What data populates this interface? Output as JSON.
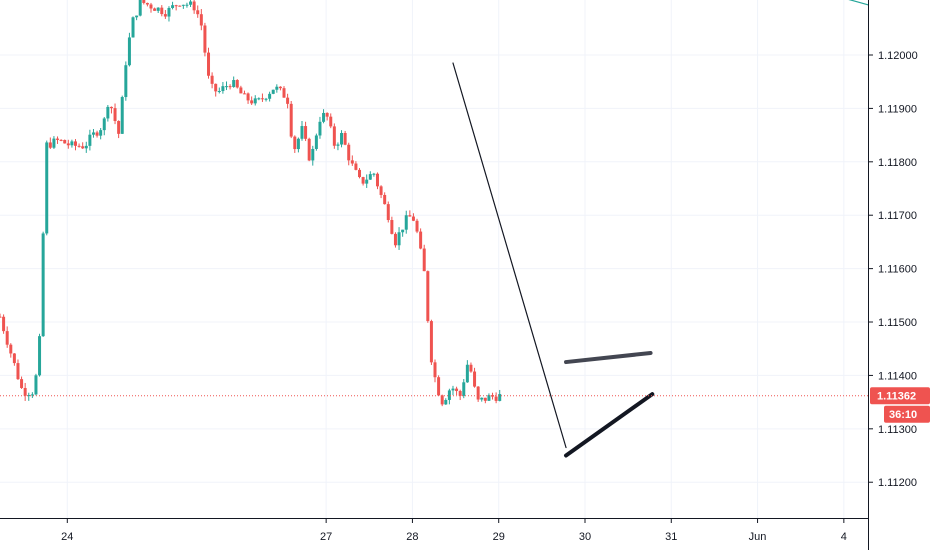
{
  "chart_data": {
    "type": "candlestick",
    "grid": true,
    "x_ticks": [
      {
        "label": "24",
        "day": 24
      },
      {
        "label": "27",
        "day": 27
      },
      {
        "label": "28",
        "day": 28
      },
      {
        "label": "29",
        "day": 29
      },
      {
        "label": "30",
        "day": 30
      },
      {
        "label": "31",
        "day": 31
      },
      {
        "label": "Jun",
        "day": 32
      },
      {
        "label": "4",
        "day": 33
      }
    ],
    "xlim": [
      23.22,
      33.28
    ],
    "ylim": [
      1.11133,
      1.12103
    ],
    "y_ticks": [
      "1.12000",
      "1.11900",
      "1.11800",
      "1.11700",
      "1.11600",
      "1.11500",
      "1.11400",
      "1.11300",
      "1.11200"
    ],
    "current_price": {
      "value": 1.11362,
      "label": "1.11362",
      "countdown": "36:10",
      "color": "#ef5350"
    },
    "colors": {
      "up": "#26a69a",
      "down": "#ef5350",
      "grid": "#f0f3fa",
      "axis": "#131722",
      "trendline": "#131722",
      "pattern_upper": "#434651",
      "pattern_lower": "#131722",
      "teal_line": "#26a69a"
    },
    "trendlines": [
      {
        "name": "impulse-down-line",
        "x1": 28.47,
        "y1": 1.11985,
        "x2": 29.78,
        "y2": 1.11265
      },
      {
        "name": "flag-upper-line",
        "x1": 29.78,
        "y1": 1.11425,
        "x2": 30.76,
        "y2": 1.11442
      },
      {
        "name": "flag-lower-line",
        "x1": 29.78,
        "y1": 1.1125,
        "x2": 30.78,
        "y2": 1.11365
      },
      {
        "name": "teal-line",
        "x1": 32.7,
        "y1": 1.1212,
        "x2": 33.28,
        "y2": 1.12094
      }
    ],
    "ohlc_anchors": [
      [
        23.22,
        1.1151
      ],
      [
        23.35,
        1.1144
      ],
      [
        23.48,
        1.1137
      ],
      [
        23.62,
        1.1137
      ],
      [
        23.7,
        1.115
      ],
      [
        23.74,
        1.1183
      ],
      [
        23.9,
        1.1184
      ],
      [
        24.05,
        1.1183
      ],
      [
        24.2,
        1.1183
      ],
      [
        24.3,
        1.1185
      ],
      [
        24.42,
        1.1187
      ],
      [
        24.48,
        1.1192
      ],
      [
        24.6,
        1.1185
      ],
      [
        24.68,
        1.1199
      ],
      [
        24.75,
        1.1206
      ],
      [
        24.85,
        1.121
      ],
      [
        25.0,
        1.1209
      ],
      [
        25.15,
        1.1208
      ],
      [
        25.3,
        1.121
      ],
      [
        25.48,
        1.1209
      ],
      [
        25.55,
        1.1206
      ],
      [
        25.65,
        1.1194
      ],
      [
        25.75,
        1.1193
      ],
      [
        25.9,
        1.1195
      ],
      [
        26.05,
        1.1192
      ],
      [
        26.2,
        1.1191
      ],
      [
        26.4,
        1.1194
      ],
      [
        26.55,
        1.1192
      ],
      [
        26.62,
        1.1182
      ],
      [
        26.72,
        1.1186
      ],
      [
        26.82,
        1.118
      ],
      [
        26.92,
        1.1188
      ],
      [
        27.0,
        1.1189
      ],
      [
        27.1,
        1.1183
      ],
      [
        27.18,
        1.1185
      ],
      [
        27.28,
        1.118
      ],
      [
        27.4,
        1.1176
      ],
      [
        27.55,
        1.1178
      ],
      [
        27.65,
        1.1173
      ],
      [
        27.72,
        1.117
      ],
      [
        27.8,
        1.1165
      ],
      [
        27.92,
        1.1169
      ],
      [
        28.0,
        1.117
      ],
      [
        28.05,
        1.1167
      ],
      [
        28.15,
        1.1158
      ],
      [
        28.2,
        1.1145
      ],
      [
        28.28,
        1.1138
      ],
      [
        28.35,
        1.1135
      ],
      [
        28.45,
        1.1138
      ],
      [
        28.55,
        1.1136
      ],
      [
        28.65,
        1.1143
      ],
      [
        28.75,
        1.1135
      ],
      [
        28.9,
        1.1136
      ],
      [
        29.05,
        1.11362
      ]
    ]
  }
}
